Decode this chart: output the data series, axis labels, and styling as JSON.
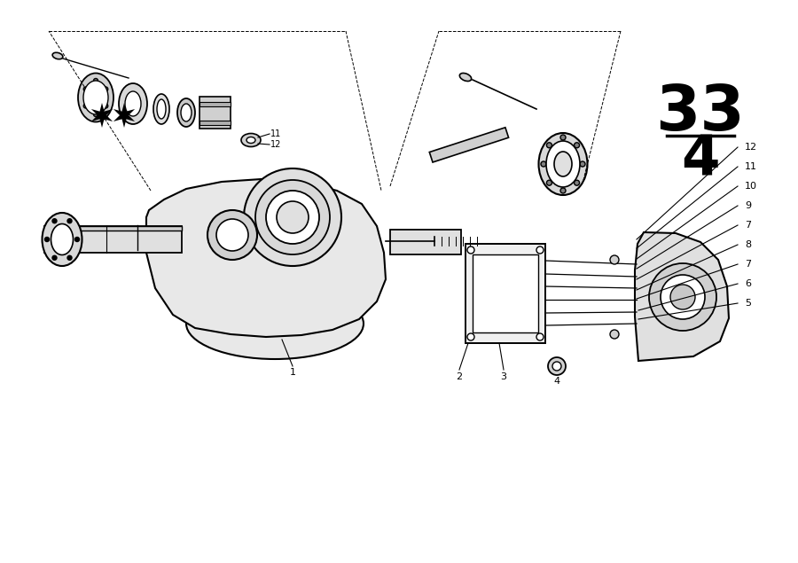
{
  "bg_color": "#ffffff",
  "line_color": "#000000",
  "title_number": "33",
  "title_sub": "4",
  "part_numbers_right": [
    "5",
    "6",
    "7",
    "8",
    "7",
    "9",
    "10",
    "11",
    "12"
  ],
  "part_numbers_left": [
    "12",
    "11"
  ],
  "part_number_1": "1",
  "part_number_2": "2",
  "part_number_3": "3",
  "part_number_4": "4"
}
